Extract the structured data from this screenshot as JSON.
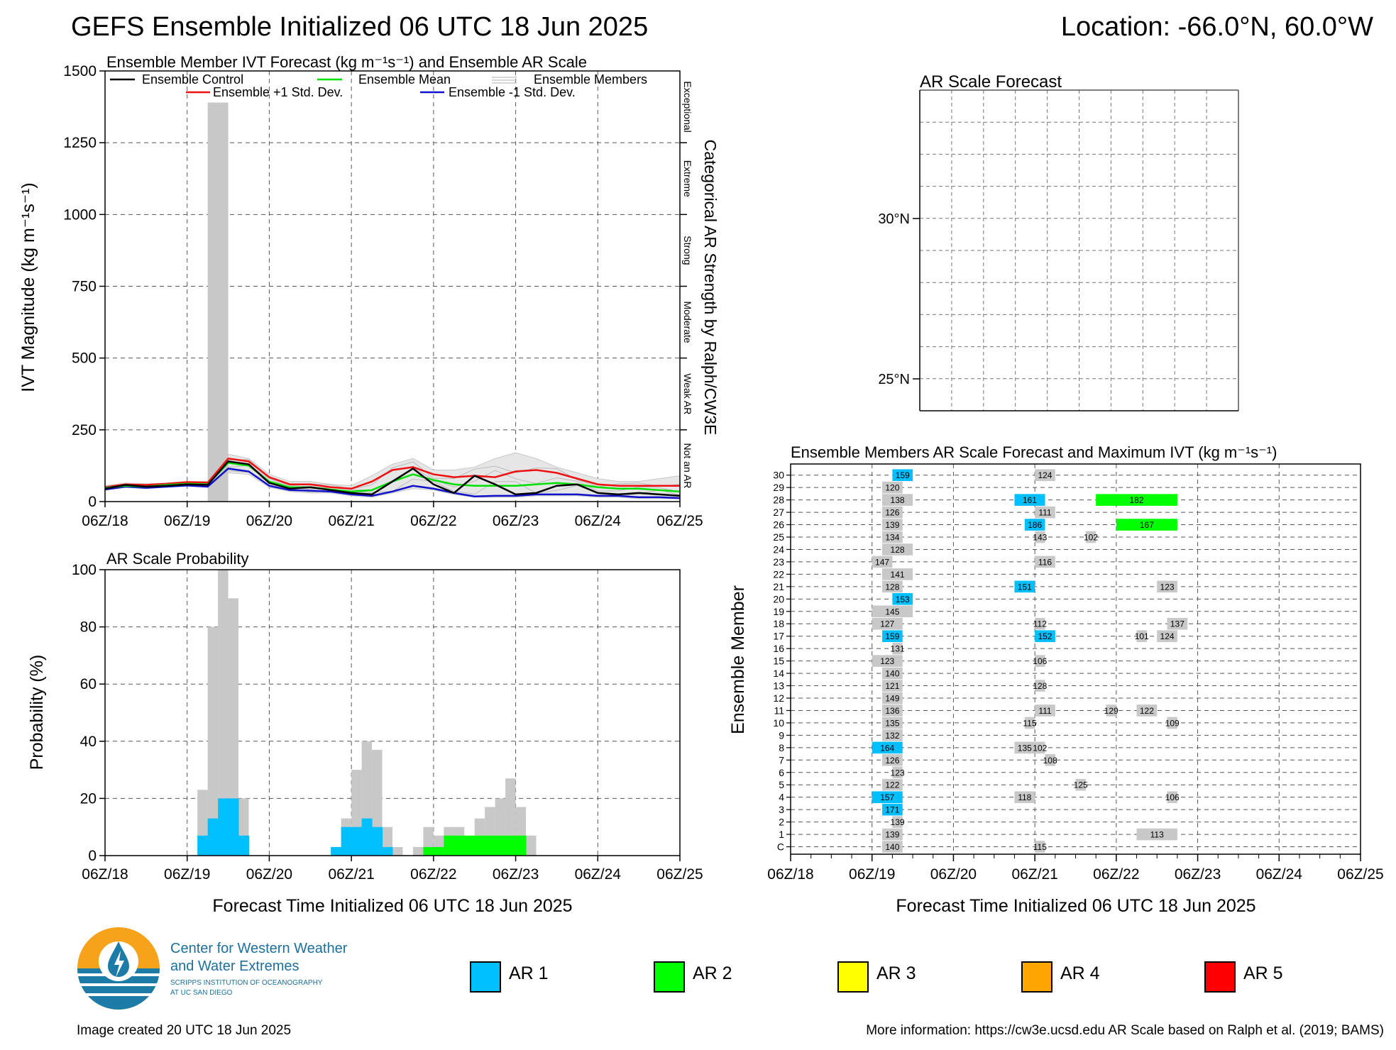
{
  "header": {
    "title": "GEFS Ensemble Initialized 06 UTC 18 Jun 2025",
    "location": "Location: -66.0°N, 60.0°W"
  },
  "colors": {
    "ar1": "#00bfff",
    "ar2": "#00ff00",
    "ar3": "#ffff00",
    "ar4": "#ffa500",
    "ar5": "#ff0000",
    "member_gray": "#c8c8c8",
    "control": "#000000",
    "mean": "#00e000",
    "plus_std": "#ee1111",
    "minus_std": "#1111cc"
  },
  "time_axis": {
    "ticks": [
      "06Z/18",
      "06Z/19",
      "06Z/20",
      "06Z/21",
      "06Z/22",
      "06Z/23",
      "06Z/24",
      "06Z/25"
    ],
    "xlabel": "Forecast Time Initialized 06 UTC 18 Jun 2025"
  },
  "ivt_panel": {
    "title": "Ensemble Member IVT Forecast (kg m⁻¹s⁻¹) and Ensemble AR Scale",
    "ylabel": "IVT Magnitude (kg m⁻¹s⁻¹)",
    "right_label": "Categorical AR Strength by Ralph/CW3E",
    "yticks": [
      "0",
      "250",
      "500",
      "750",
      "1000",
      "1250",
      "1500"
    ],
    "categories": [
      "Not an AR",
      "Weak AR",
      "Moderate",
      "Strong",
      "Extreme",
      "Exceptional"
    ],
    "legend": {
      "control": "Ensemble Control",
      "mean": "Ensemble Mean",
      "members": "Ensemble Members",
      "plus_std": "Ensemble +1 Std. Dev.",
      "minus_std": "Ensemble -1 Std. Dev."
    }
  },
  "prob_panel": {
    "title": "AR Scale Probability",
    "ylabel": "Probability (%)",
    "yticks": [
      "0",
      "20",
      "40",
      "60",
      "80",
      "100"
    ]
  },
  "map_panel": {
    "title": "AR Scale Forecast",
    "lat_labels": [
      "30°N",
      "25°N"
    ]
  },
  "members_panel": {
    "title": "Ensemble Members AR Scale Forecast and Maximum IVT (kg m⁻¹s⁻¹)",
    "ylabel": "Ensemble Member",
    "member_labels": [
      "C",
      "1",
      "2",
      "3",
      "4",
      "5",
      "6",
      "7",
      "8",
      "9",
      "10",
      "11",
      "12",
      "13",
      "14",
      "15",
      "16",
      "17",
      "18",
      "19",
      "20",
      "21",
      "22",
      "23",
      "24",
      "25",
      "26",
      "27",
      "28",
      "29",
      "30"
    ]
  },
  "legend_boxes": [
    {
      "label": "AR 1",
      "color": "#00bfff"
    },
    {
      "label": "AR 2",
      "color": "#00ff00"
    },
    {
      "label": "AR 3",
      "color": "#ffff00"
    },
    {
      "label": "AR 4",
      "color": "#ffa500"
    },
    {
      "label": "AR 5",
      "color": "#ff0000"
    }
  ],
  "logo": {
    "line1": "Center for Western Weather",
    "line2": "and Water Extremes",
    "line3": "SCRIPPS INSTITUTION OF OCEANOGRAPHY",
    "line4": "AT UC SAN DIEGO"
  },
  "footer": {
    "created": "Image created 20 UTC 18 Jun 2025",
    "more_info": "More information: https://cw3e.ucsd.edu AR Scale based on Ralph et al. (2019; BAMS)"
  },
  "chart_data": [
    {
      "type": "line",
      "title": "Ensemble Member IVT Forecast (kg m⁻¹s⁻¹) and Ensemble AR Scale",
      "ylabel": "IVT Magnitude (kg m⁻¹s⁻¹)",
      "xlabel": "",
      "ylim": [
        0,
        1500
      ],
      "x_hours_from_06Z18": [
        0,
        6,
        12,
        18,
        24,
        30,
        36,
        42,
        48,
        54,
        60,
        66,
        72,
        78,
        84,
        90,
        96,
        102,
        108,
        114,
        120,
        126,
        132,
        138,
        144,
        150,
        156,
        162,
        168
      ],
      "series": [
        {
          "name": "Ensemble Control",
          "values": [
            45,
            58,
            52,
            55,
            60,
            58,
            140,
            130,
            65,
            45,
            50,
            40,
            30,
            25,
            70,
            115,
            60,
            30,
            90,
            60,
            25,
            30,
            55,
            60,
            30,
            25,
            30,
            25,
            20
          ]
        },
        {
          "name": "Ensemble Mean",
          "values": [
            48,
            55,
            52,
            58,
            62,
            60,
            135,
            125,
            70,
            50,
            50,
            42,
            35,
            40,
            70,
            95,
            75,
            60,
            55,
            55,
            55,
            60,
            65,
            60,
            50,
            45,
            45,
            40,
            35
          ]
        },
        {
          "name": "Ensemble +1 Std. Dev.",
          "values": [
            50,
            60,
            58,
            62,
            68,
            66,
            150,
            140,
            85,
            60,
            60,
            50,
            45,
            70,
            110,
            120,
            95,
            85,
            90,
            85,
            105,
            110,
            100,
            80,
            60,
            55,
            55,
            55,
            55
          ]
        },
        {
          "name": "Ensemble -1 Std. Dev.",
          "values": [
            42,
            52,
            48,
            52,
            56,
            52,
            115,
            105,
            55,
            40,
            38,
            35,
            25,
            20,
            35,
            55,
            45,
            30,
            18,
            20,
            20,
            25,
            25,
            25,
            20,
            20,
            15,
            15,
            12
          ]
        }
      ],
      "members_band": {
        "min": [
          40,
          50,
          45,
          50,
          55,
          50,
          100,
          95,
          50,
          35,
          30,
          30,
          20,
          15,
          30,
          45,
          40,
          25,
          15,
          15,
          15,
          20,
          20,
          20,
          15,
          15,
          10,
          10,
          10
        ],
        "max": [
          55,
          65,
          62,
          65,
          70,
          70,
          165,
          150,
          95,
          70,
          70,
          60,
          55,
          90,
          130,
          150,
          110,
          110,
          120,
          150,
          170,
          150,
          120,
          100,
          80,
          70,
          70,
          80,
          90
        ]
      },
      "ar_scale_bar": {
        "category": "AR 1",
        "x_start_hours": 30,
        "x_end_hours": 36,
        "color": "#c8c8c8",
        "top": 1390
      }
    },
    {
      "type": "bar",
      "title": "AR Scale Probability",
      "ylabel": "Probability (%)",
      "ylim": [
        0,
        100
      ],
      "bin_hours": 3,
      "any_ar": [
        {
          "h": 27,
          "v": 23
        },
        {
          "h": 30,
          "v": 80
        },
        {
          "h": 33,
          "v": 100
        },
        {
          "h": 36,
          "v": 90
        },
        {
          "h": 39,
          "v": 20
        },
        {
          "h": 66,
          "v": 3
        },
        {
          "h": 69,
          "v": 13
        },
        {
          "h": 72,
          "v": 30
        },
        {
          "h": 75,
          "v": 40
        },
        {
          "h": 78,
          "v": 37
        },
        {
          "h": 81,
          "v": 10
        },
        {
          "h": 84,
          "v": 3
        },
        {
          "h": 90,
          "v": 3
        },
        {
          "h": 93,
          "v": 10
        },
        {
          "h": 96,
          "v": 7
        },
        {
          "h": 99,
          "v": 10
        },
        {
          "h": 102,
          "v": 10
        },
        {
          "h": 105,
          "v": 7
        },
        {
          "h": 108,
          "v": 13
        },
        {
          "h": 111,
          "v": 17
        },
        {
          "h": 114,
          "v": 20
        },
        {
          "h": 117,
          "v": 27
        },
        {
          "h": 120,
          "v": 17
        },
        {
          "h": 123,
          "v": 7
        }
      ],
      "series": [
        {
          "name": "AR 1",
          "values": [
            {
              "h": 27,
              "v": 7
            },
            {
              "h": 30,
              "v": 13
            },
            {
              "h": 33,
              "v": 20
            },
            {
              "h": 36,
              "v": 20
            },
            {
              "h": 39,
              "v": 7
            },
            {
              "h": 66,
              "v": 3
            },
            {
              "h": 69,
              "v": 10
            },
            {
              "h": 72,
              "v": 10
            },
            {
              "h": 75,
              "v": 13
            },
            {
              "h": 78,
              "v": 10
            },
            {
              "h": 81,
              "v": 3
            }
          ]
        },
        {
          "name": "AR 2",
          "values": [
            {
              "h": 93,
              "v": 3
            },
            {
              "h": 96,
              "v": 3
            },
            {
              "h": 99,
              "v": 7
            },
            {
              "h": 102,
              "v": 7
            },
            {
              "h": 105,
              "v": 7
            },
            {
              "h": 108,
              "v": 7
            },
            {
              "h": 111,
              "v": 7
            },
            {
              "h": 114,
              "v": 7
            },
            {
              "h": 117,
              "v": 7
            },
            {
              "h": 120,
              "v": 7
            }
          ]
        }
      ]
    },
    {
      "type": "bar",
      "title": "Ensemble Members AR Scale Forecast and Maximum IVT (kg m⁻¹s⁻¹)",
      "ylabel": "Ensemble Member",
      "xlabel": "Forecast Time Initialized 06 UTC 18 Jun 2025",
      "bars": [
        {
          "m": 30,
          "s": 30,
          "e": 36,
          "ar": 1,
          "ivt": "159"
        },
        {
          "m": 30,
          "s": 72,
          "e": 78,
          "ar": 0,
          "ivt": "124"
        },
        {
          "m": 29,
          "s": 27,
          "e": 33,
          "ar": 0,
          "ivt": "120"
        },
        {
          "m": 28,
          "s": 27,
          "e": 36,
          "ar": 0,
          "ivt": "138"
        },
        {
          "m": 28,
          "s": 66,
          "e": 75,
          "ar": 1,
          "ivt": "161"
        },
        {
          "m": 28,
          "s": 90,
          "e": 114,
          "ar": 2,
          "ivt": "182"
        },
        {
          "m": 27,
          "s": 27,
          "e": 33,
          "ar": 0,
          "ivt": "126"
        },
        {
          "m": 27,
          "s": 72,
          "e": 78,
          "ar": 0,
          "ivt": "111"
        },
        {
          "m": 26,
          "s": 27,
          "e": 33,
          "ar": 0,
          "ivt": "139"
        },
        {
          "m": 26,
          "s": 69,
          "e": 75,
          "ar": 1,
          "ivt": "186"
        },
        {
          "m": 26,
          "s": 96,
          "e": 114,
          "ar": 2,
          "ivt": "167"
        },
        {
          "m": 25,
          "s": 27,
          "e": 33,
          "ar": 0,
          "ivt": "134"
        },
        {
          "m": 25,
          "s": 72,
          "e": 75,
          "ar": 0,
          "ivt": "143"
        },
        {
          "m": 25,
          "s": 87,
          "e": 90,
          "ar": 0,
          "ivt": "102"
        },
        {
          "m": 24,
          "s": 27,
          "e": 36,
          "ar": 0,
          "ivt": "128"
        },
        {
          "m": 23,
          "s": 24,
          "e": 30,
          "ar": 0,
          "ivt": "147"
        },
        {
          "m": 23,
          "s": 72,
          "e": 78,
          "ar": 0,
          "ivt": "116"
        },
        {
          "m": 22,
          "s": 27,
          "e": 36,
          "ar": 0,
          "ivt": "141"
        },
        {
          "m": 21,
          "s": 27,
          "e": 33,
          "ar": 0,
          "ivt": "128"
        },
        {
          "m": 21,
          "s": 66,
          "e": 72,
          "ar": 1,
          "ivt": "151"
        },
        {
          "m": 21,
          "s": 108,
          "e": 114,
          "ar": 0,
          "ivt": "123"
        },
        {
          "m": 20,
          "s": 30,
          "e": 36,
          "ar": 1,
          "ivt": "153"
        },
        {
          "m": 19,
          "s": 24,
          "e": 36,
          "ar": 0,
          "ivt": "145"
        },
        {
          "m": 18,
          "s": 24,
          "e": 33,
          "ar": 0,
          "ivt": "127"
        },
        {
          "m": 18,
          "s": 72,
          "e": 75,
          "ar": 0,
          "ivt": "112"
        },
        {
          "m": 18,
          "s": 111,
          "e": 117,
          "ar": 0,
          "ivt": "137"
        },
        {
          "m": 17,
          "s": 27,
          "e": 33,
          "ar": 1,
          "ivt": "159"
        },
        {
          "m": 17,
          "s": 72,
          "e": 78,
          "ar": 1,
          "ivt": "152"
        },
        {
          "m": 17,
          "s": 102,
          "e": 105,
          "ar": 0,
          "ivt": "101"
        },
        {
          "m": 17,
          "s": 108,
          "e": 114,
          "ar": 0,
          "ivt": "124"
        },
        {
          "m": 16,
          "s": 30,
          "e": 33,
          "ar": 0,
          "ivt": "131"
        },
        {
          "m": 15,
          "s": 24,
          "e": 33,
          "ar": 0,
          "ivt": "123"
        },
        {
          "m": 15,
          "s": 72,
          "e": 75,
          "ar": 0,
          "ivt": "106"
        },
        {
          "m": 14,
          "s": 27,
          "e": 33,
          "ar": 0,
          "ivt": "140"
        },
        {
          "m": 13,
          "s": 27,
          "e": 33,
          "ar": 0,
          "ivt": "121"
        },
        {
          "m": 13,
          "s": 72,
          "e": 75,
          "ar": 0,
          "ivt": "128"
        },
        {
          "m": 12,
          "s": 27,
          "e": 33,
          "ar": 0,
          "ivt": "149"
        },
        {
          "m": 11,
          "s": 27,
          "e": 33,
          "ar": 0,
          "ivt": "136"
        },
        {
          "m": 11,
          "s": 72,
          "e": 78,
          "ar": 0,
          "ivt": "111"
        },
        {
          "m": 11,
          "s": 93,
          "e": 96,
          "ar": 0,
          "ivt": "129"
        },
        {
          "m": 11,
          "s": 102,
          "e": 108,
          "ar": 0,
          "ivt": "122"
        },
        {
          "m": 10,
          "s": 27,
          "e": 33,
          "ar": 0,
          "ivt": "135"
        },
        {
          "m": 10,
          "s": 69,
          "e": 72,
          "ar": 0,
          "ivt": "115"
        },
        {
          "m": 10,
          "s": 111,
          "e": 114,
          "ar": 0,
          "ivt": "109"
        },
        {
          "m": 9,
          "s": 27,
          "e": 33,
          "ar": 0,
          "ivt": "132"
        },
        {
          "m": 8,
          "s": 24,
          "e": 33,
          "ar": 1,
          "ivt": "164"
        },
        {
          "m": 8,
          "s": 66,
          "e": 72,
          "ar": 0,
          "ivt": "135"
        },
        {
          "m": 8,
          "s": 72,
          "e": 75,
          "ar": 0,
          "ivt": "102"
        },
        {
          "m": 7,
          "s": 27,
          "e": 33,
          "ar": 0,
          "ivt": "126"
        },
        {
          "m": 7,
          "s": 75,
          "e": 78,
          "ar": 0,
          "ivt": "108"
        },
        {
          "m": 6,
          "s": 30,
          "e": 33,
          "ar": 0,
          "ivt": "123"
        },
        {
          "m": 5,
          "s": 27,
          "e": 33,
          "ar": 0,
          "ivt": "122"
        },
        {
          "m": 5,
          "s": 84,
          "e": 87,
          "ar": 0,
          "ivt": "125"
        },
        {
          "m": 4,
          "s": 24,
          "e": 33,
          "ar": 1,
          "ivt": "157"
        },
        {
          "m": 4,
          "s": 66,
          "e": 72,
          "ar": 0,
          "ivt": "118"
        },
        {
          "m": 4,
          "s": 111,
          "e": 114,
          "ar": 0,
          "ivt": "106"
        },
        {
          "m": 3,
          "s": 27,
          "e": 33,
          "ar": 1,
          "ivt": "171"
        },
        {
          "m": 2,
          "s": 30,
          "e": 33,
          "ar": 0,
          "ivt": "139"
        },
        {
          "m": 1,
          "s": 27,
          "e": 33,
          "ar": 0,
          "ivt": "139"
        },
        {
          "m": 1,
          "s": 102,
          "e": 114,
          "ar": 0,
          "ivt": "113"
        },
        {
          "m": 0,
          "s": 27,
          "e": 33,
          "ar": 0,
          "ivt": "140"
        },
        {
          "m": 0,
          "s": 72,
          "e": 75,
          "ar": 0,
          "ivt": "115"
        }
      ]
    }
  ]
}
